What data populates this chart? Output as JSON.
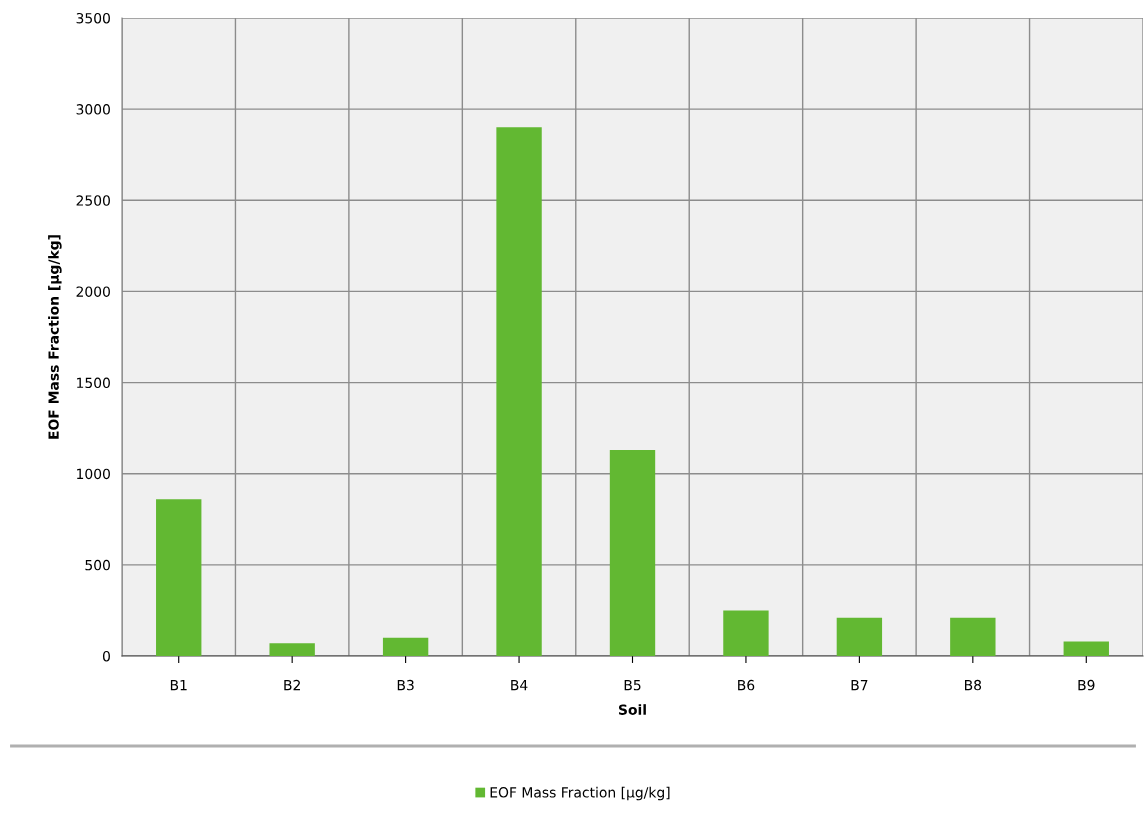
{
  "chart_data": {
    "type": "bar",
    "xlabel": "Soil",
    "ylabel": "EOF Mass Fraction [µg/kg]",
    "categories": [
      "B1",
      "B2",
      "B3",
      "B4",
      "B5",
      "B6",
      "B7",
      "B8",
      "B9"
    ],
    "series": [
      {
        "name": "EOF Mass Fraction [µg/kg]",
        "color": "#62b832",
        "values": [
          860,
          70,
          100,
          2900,
          1130,
          250,
          210,
          210,
          80
        ]
      }
    ],
    "ylim": [
      0,
      3500
    ],
    "yticks": [
      0,
      500,
      1000,
      1500,
      2000,
      2500,
      3000,
      3500
    ],
    "grid": true,
    "legend": "bottom"
  }
}
